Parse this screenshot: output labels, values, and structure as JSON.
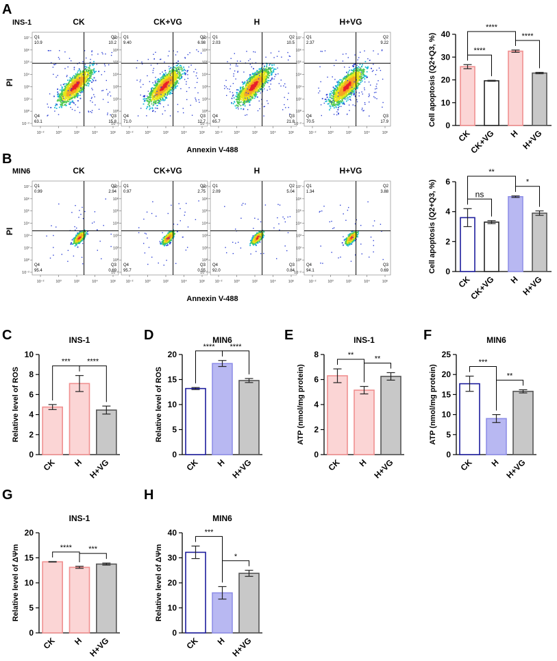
{
  "panels": {
    "A": {
      "letter": "A",
      "cell_line": "INS-1",
      "xaxis_label": "Annexin V-488",
      "yaxis_label": "PI",
      "plots": [
        {
          "title": "CK",
          "q1": "10.9",
          "q2": "10.2",
          "q3": "15.8",
          "q4": "63.1"
        },
        {
          "title": "CK+VG",
          "q1": "9.40",
          "q2": "6.98",
          "q3": "12.7",
          "q4": "71.0"
        },
        {
          "title": "H",
          "q1": "2.03",
          "q2": "10.5",
          "q3": "21.8",
          "q4": "65.7"
        },
        {
          "title": "H+VG",
          "q1": "2.37",
          "q2": "9.22",
          "q3": "17.9",
          "q4": "70.5"
        }
      ]
    },
    "B": {
      "letter": "B",
      "cell_line": "MIN6",
      "xaxis_label": "Annexin V-488",
      "yaxis_label": "PI",
      "plots": [
        {
          "title": "CK",
          "q1": "0.99",
          "q2": "2.94",
          "q3": "0.69",
          "q4": "95.4"
        },
        {
          "title": "CK+VG",
          "q1": "0.97",
          "q2": "2.75",
          "q3": "0.55",
          "q4": "95.7"
        },
        {
          "title": "H",
          "q1": "2.09",
          "q2": "5.04",
          "q3": "0.84",
          "q4": "92.0"
        },
        {
          "title": "H+VG",
          "q1": "1.34",
          "q2": "3.88",
          "q3": "0.69",
          "q4": "94.1"
        }
      ]
    },
    "C": {
      "letter": "C"
    },
    "D": {
      "letter": "D"
    },
    "E": {
      "letter": "E"
    },
    "F": {
      "letter": "F"
    },
    "G": {
      "letter": "G"
    },
    "H": {
      "letter": "H"
    }
  },
  "quadrant_labels": [
    "Q1",
    "Q2",
    "Q3",
    "Q4"
  ],
  "flow_tick_labels": {
    "x": [
      "10⁻²",
      "10⁰",
      "10²",
      "10⁴",
      "10⁶"
    ],
    "y": [
      "10⁷",
      "10⁶",
      "10⁵",
      "10⁴",
      "10³",
      "10²",
      "10⁰",
      "10⁻²"
    ]
  },
  "chart_data": [
    {
      "id": "A-bar",
      "panel": "A",
      "type": "bar",
      "title": "",
      "categories": [
        "CK",
        "CK+VG",
        "H",
        "H+VG"
      ],
      "values": [
        25.8,
        19.6,
        32.6,
        23.0
      ],
      "errors": [
        0.9,
        0.2,
        0.5,
        0.3
      ],
      "ylabel": "Cell apoptosis (Q2+Q3, %)",
      "ylim": [
        0,
        40
      ],
      "yticks": [
        0,
        10,
        20,
        30,
        40
      ],
      "ytick_labels": [
        "0",
        "10",
        "20",
        "30",
        "40"
      ],
      "colors": [
        "pink",
        "white",
        "pink",
        "grey"
      ],
      "significance": [
        {
          "from": 0,
          "to": 1,
          "label": "****"
        },
        {
          "from": 2,
          "to": 3,
          "label": "****"
        },
        {
          "from": 0,
          "to": 2,
          "label": "****"
        }
      ]
    },
    {
      "id": "B-bar",
      "panel": "B",
      "type": "bar",
      "title": "",
      "categories": [
        "CK",
        "CK+VG",
        "H",
        "H+VG"
      ],
      "values": [
        3.6,
        3.3,
        5.0,
        3.9
      ],
      "errors": [
        0.6,
        0.1,
        0.05,
        0.15
      ],
      "ylabel": "Cell apoptosis (Q2+Q3, %)",
      "ylim": [
        0,
        6
      ],
      "yticks": [
        0,
        2,
        4,
        6
      ],
      "ytick_labels": [
        "0",
        "2",
        "4",
        "6"
      ],
      "colors": [
        "blue",
        "white",
        "blue",
        "grey"
      ],
      "significance": [
        {
          "from": 0,
          "to": 1,
          "label": "ns"
        },
        {
          "from": 2,
          "to": 3,
          "label": "*"
        },
        {
          "from": 0,
          "to": 2,
          "label": "**"
        }
      ]
    },
    {
      "id": "C",
      "panel": "C",
      "type": "bar",
      "title": "INS-1",
      "categories": [
        "CK",
        "H",
        "H+VG"
      ],
      "values": [
        4.75,
        7.1,
        4.45
      ],
      "errors": [
        0.25,
        0.8,
        0.4
      ],
      "ylabel": "Relative level of ROS",
      "ylim": [
        0,
        10
      ],
      "yticks": [
        0,
        2,
        4,
        6,
        8,
        10
      ],
      "ytick_labels": [
        "0",
        "2",
        "4",
        "6",
        "8",
        "10"
      ],
      "colors": [
        "pink",
        "pink",
        "grey"
      ],
      "significance": [
        {
          "from": 0,
          "to": 1,
          "label": "***"
        },
        {
          "from": 1,
          "to": 2,
          "label": "****"
        }
      ]
    },
    {
      "id": "D",
      "panel": "D",
      "type": "bar",
      "title": "MIN6",
      "categories": [
        "CK",
        "H",
        "H+VG"
      ],
      "values": [
        13.2,
        18.2,
        14.8
      ],
      "errors": [
        0.2,
        0.6,
        0.4
      ],
      "ylabel": "Relative level of ROS",
      "ylim": [
        0,
        20
      ],
      "yticks": [
        0,
        5,
        10,
        15,
        20
      ],
      "ytick_labels": [
        "0",
        "5",
        "10",
        "15",
        "20"
      ],
      "colors": [
        "blue",
        "blue",
        "grey"
      ],
      "significance": [
        {
          "from": 0,
          "to": 1,
          "label": "****"
        },
        {
          "from": 1,
          "to": 2,
          "label": "****"
        }
      ]
    },
    {
      "id": "E",
      "panel": "E",
      "type": "bar",
      "title": "INS-1",
      "categories": [
        "CK",
        "H",
        "H+VG"
      ],
      "values": [
        6.3,
        5.15,
        6.25
      ],
      "errors": [
        0.55,
        0.3,
        0.3
      ],
      "ylabel": "ATP (nmol/mg protein)",
      "ylim": [
        0,
        8
      ],
      "yticks": [
        0,
        2,
        4,
        6,
        8
      ],
      "ytick_labels": [
        "0",
        "2",
        "4",
        "6",
        "8"
      ],
      "colors": [
        "pink",
        "pink",
        "grey"
      ],
      "significance": [
        {
          "from": 0,
          "to": 1,
          "label": "**"
        },
        {
          "from": 1,
          "to": 2,
          "label": "**"
        }
      ]
    },
    {
      "id": "F",
      "panel": "F",
      "type": "bar",
      "title": "MIN6",
      "categories": [
        "CK",
        "H",
        "H+VG"
      ],
      "values": [
        17.7,
        9.0,
        15.8
      ],
      "errors": [
        1.9,
        1.0,
        0.4
      ],
      "ylabel": "ATP (nmol/mg protein)",
      "ylim": [
        0,
        25
      ],
      "yticks": [
        0,
        5,
        10,
        15,
        20,
        25
      ],
      "ytick_labels": [
        "0",
        "5",
        "10",
        "15",
        "20",
        "25"
      ],
      "colors": [
        "blue",
        "blue",
        "grey"
      ],
      "significance": [
        {
          "from": 0,
          "to": 1,
          "label": "***"
        },
        {
          "from": 1,
          "to": 2,
          "label": "**"
        }
      ]
    },
    {
      "id": "G",
      "panel": "G",
      "type": "bar",
      "title": "INS-1",
      "categories": [
        "CK",
        "H",
        "H+VG"
      ],
      "values": [
        14.2,
        13.1,
        13.75
      ],
      "errors": [
        0.05,
        0.2,
        0.2
      ],
      "ylabel": "Relative level of ΔΨm",
      "ylim": [
        0,
        20
      ],
      "yticks": [
        0,
        5,
        10,
        15,
        20
      ],
      "ytick_labels": [
        "0",
        "5",
        "10",
        "15",
        "20"
      ],
      "colors": [
        "pink",
        "pink",
        "grey"
      ],
      "significance": [
        {
          "from": 0,
          "to": 1,
          "label": "****"
        },
        {
          "from": 1,
          "to": 2,
          "label": "***"
        }
      ]
    },
    {
      "id": "H",
      "panel": "H",
      "type": "bar",
      "title": "MIN6",
      "categories": [
        "CK",
        "H",
        "H+VG"
      ],
      "values": [
        32.2,
        16.0,
        23.8
      ],
      "errors": [
        2.5,
        2.5,
        1.2
      ],
      "ylabel": "Relative level of ΔΨm",
      "ylim": [
        0,
        40
      ],
      "yticks": [
        0,
        10,
        20,
        30,
        40
      ],
      "ytick_labels": [
        "0",
        "10",
        "20",
        "30",
        "40"
      ],
      "colors": [
        "blue",
        "blue",
        "grey"
      ],
      "significance": [
        {
          "from": 0,
          "to": 1,
          "label": "***"
        },
        {
          "from": 1,
          "to": 2,
          "label": "*"
        }
      ]
    }
  ],
  "colors": {
    "pink_fill": "#fbd5d5",
    "pink_stroke": "#f08f8f",
    "blue_fill": "#b8b8f2",
    "blue_stroke": "#1c1c9c",
    "blue_light_stroke": "#8f8fe8",
    "grey_fill": "#c8c8c8",
    "grey_stroke": "#555555",
    "white_fill": "#ffffff",
    "white_stroke": "#222222"
  }
}
